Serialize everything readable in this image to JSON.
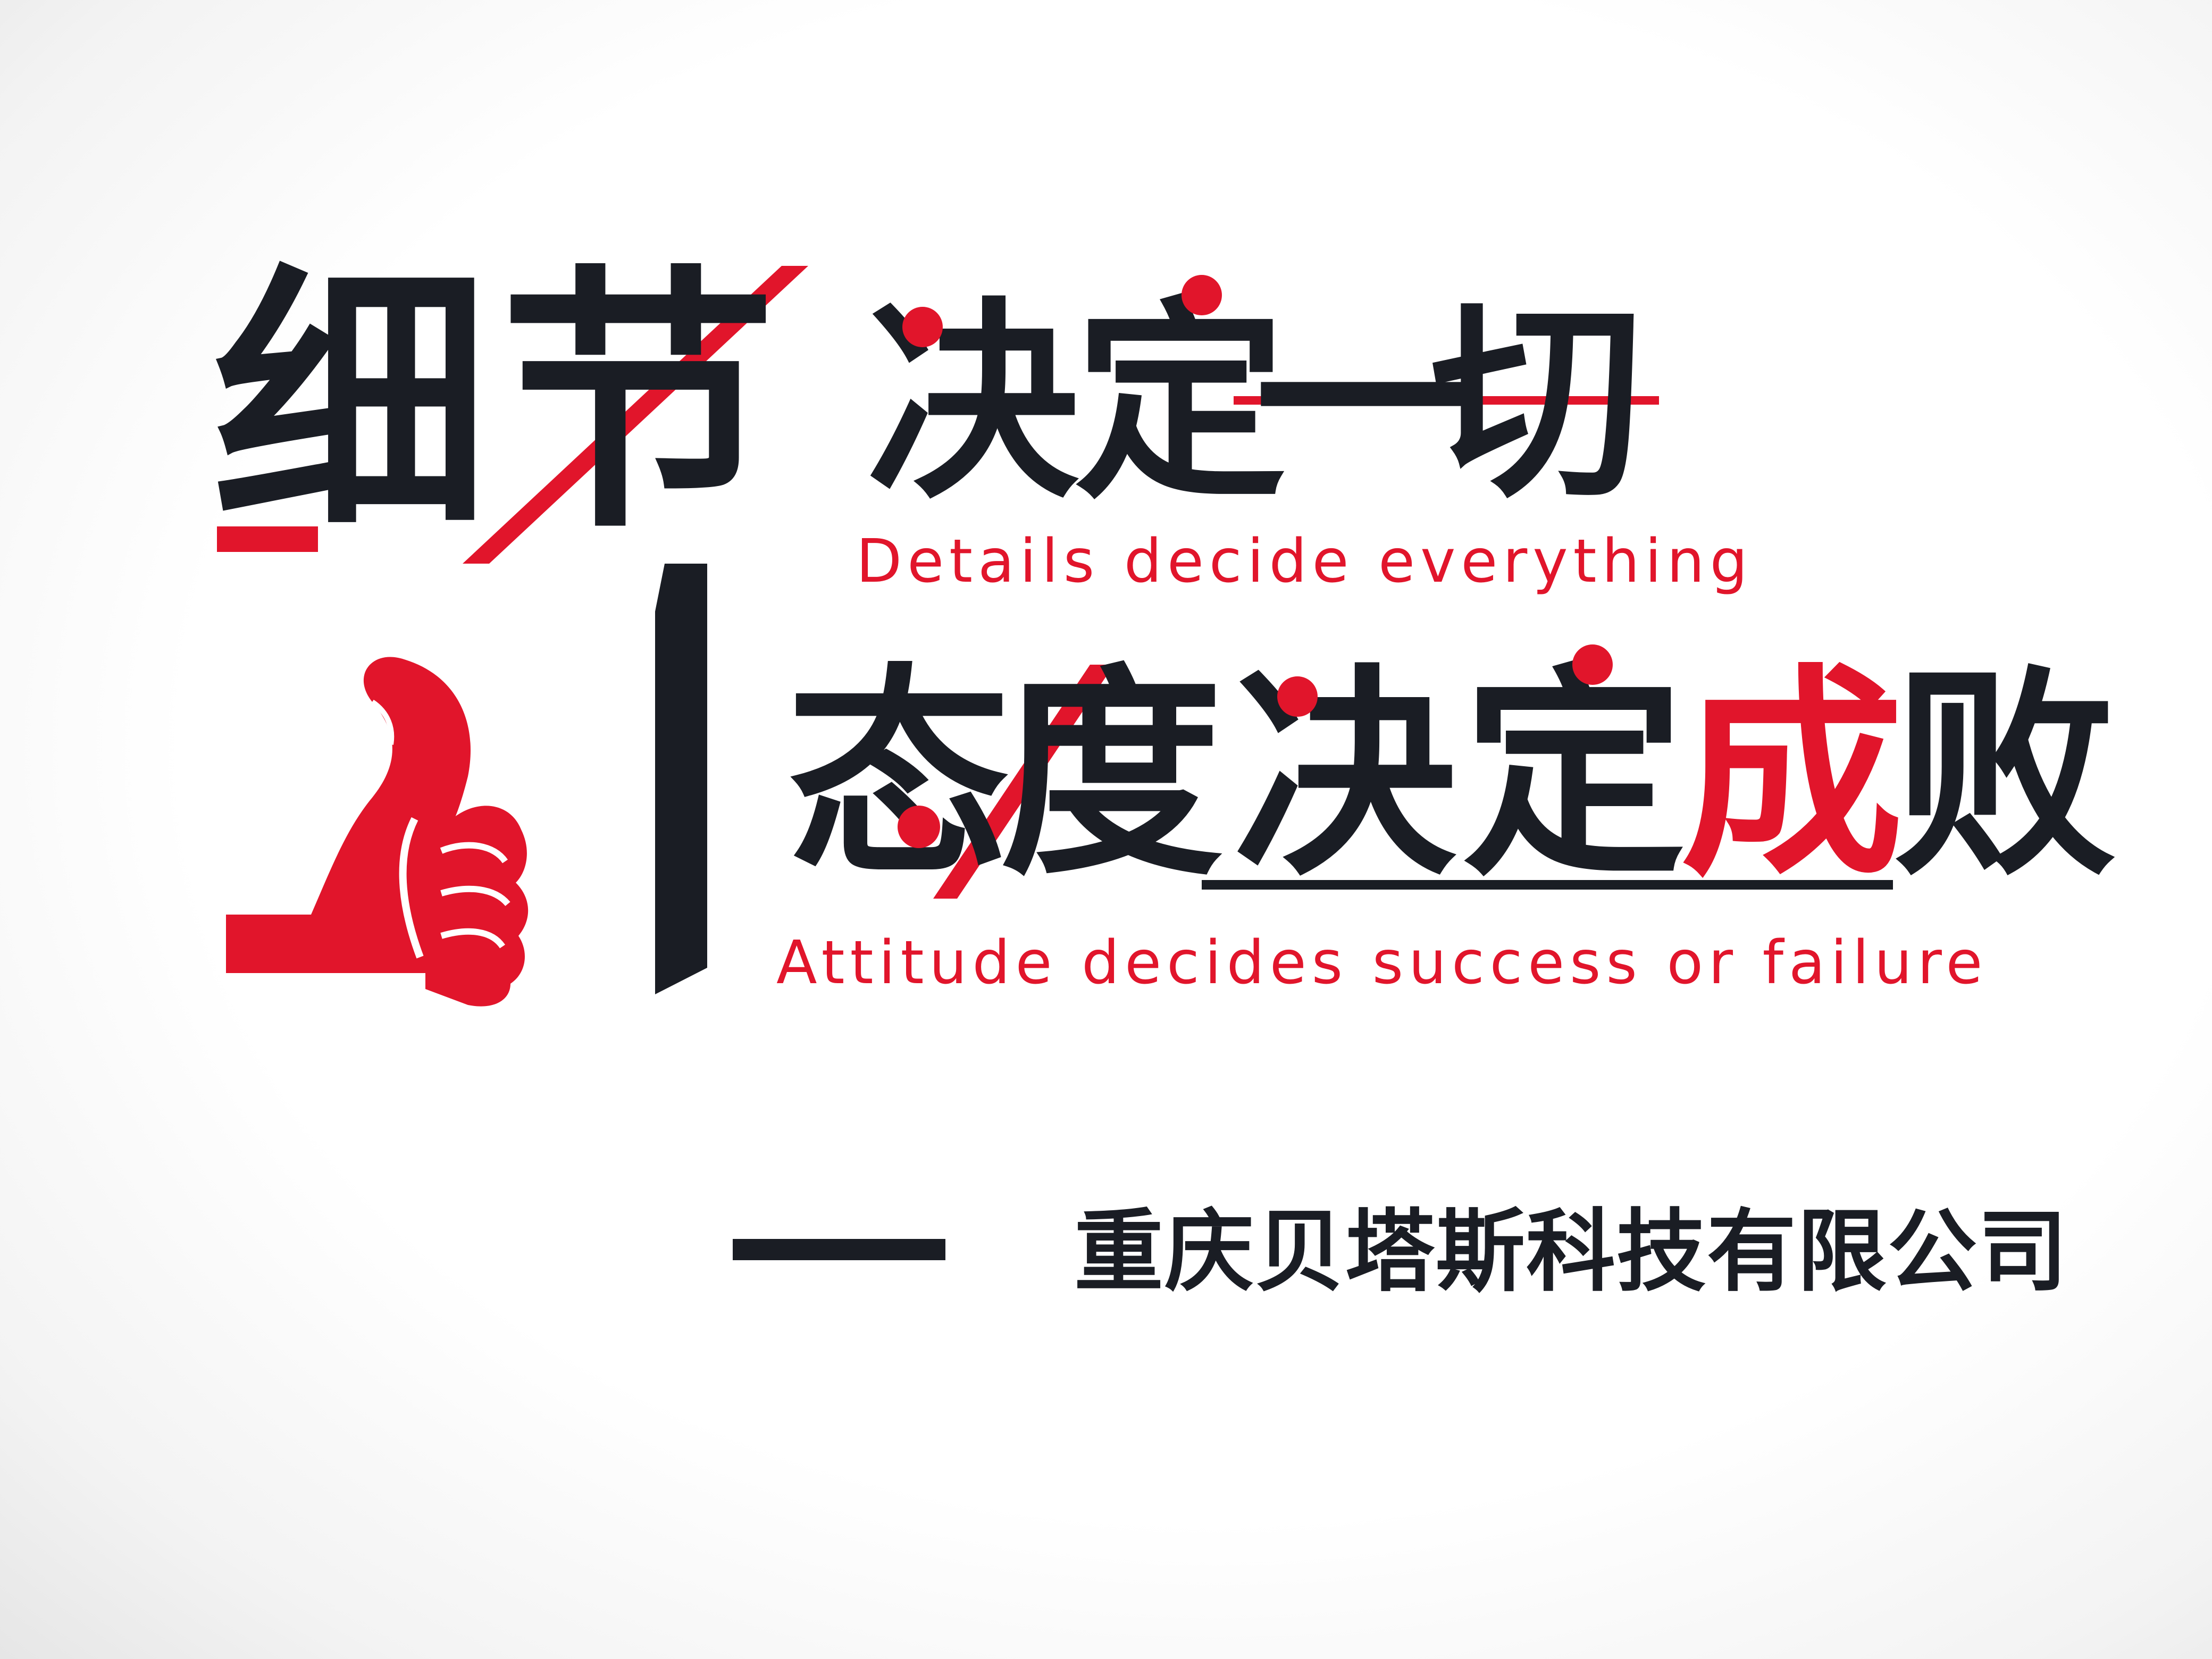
{
  "slogan1": {
    "chars": [
      "细",
      "节",
      "决",
      "定",
      "一",
      "切"
    ],
    "english": "Details decide everything"
  },
  "slogan2": {
    "chars": [
      "态",
      "度",
      "决",
      "定",
      "成",
      "败"
    ],
    "english": "Attitude decides success or failure"
  },
  "company": {
    "name": "重庆贝塔斯科技有限公司"
  },
  "colors": {
    "accent_red": "#e1152b",
    "text_dark": "#1a1d24",
    "background": "#ffffff"
  },
  "icons": {
    "thumb": "thumbs-up-icon"
  }
}
